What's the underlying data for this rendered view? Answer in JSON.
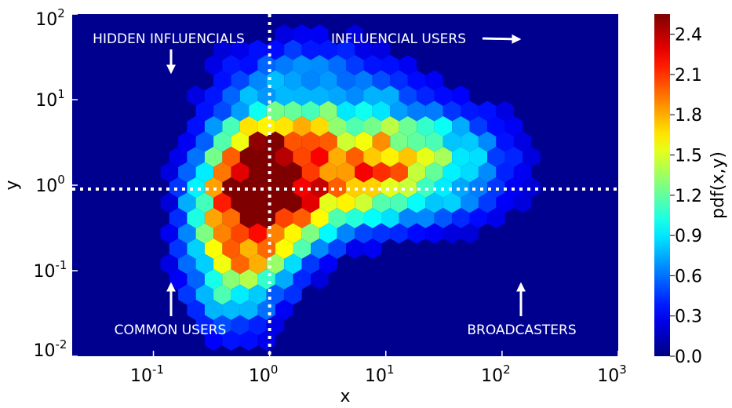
{
  "chart_data": {
    "type": "heatmap",
    "subtype": "hexbin",
    "xlabel": "x",
    "ylabel": "y",
    "x_scale": "log",
    "y_scale": "log",
    "xlim": [
      0.02,
      1000
    ],
    "ylim": [
      0.01,
      100
    ],
    "x_ticks": [
      {
        "value": 0.1,
        "base": "10",
        "exp": "-1"
      },
      {
        "value": 1,
        "base": "10",
        "exp": "0"
      },
      {
        "value": 10,
        "base": "10",
        "exp": "1"
      },
      {
        "value": 100,
        "base": "10",
        "exp": "2"
      },
      {
        "value": 1000,
        "base": "10",
        "exp": "3"
      }
    ],
    "y_ticks": [
      {
        "value": 0.01,
        "base": "10",
        "exp": "-2"
      },
      {
        "value": 0.1,
        "base": "10",
        "exp": "-1"
      },
      {
        "value": 1,
        "base": "10",
        "exp": "0"
      },
      {
        "value": 10,
        "base": "10",
        "exp": "1"
      },
      {
        "value": 100,
        "base": "10",
        "exp": "2"
      }
    ],
    "colorbar": {
      "label": "pdf(x,y)",
      "range": [
        0.0,
        2.55
      ],
      "ticks": [
        "0.0",
        "0.3",
        "0.6",
        "0.9",
        "1.2",
        "1.5",
        "1.8",
        "2.1",
        "2.4"
      ],
      "colormap": "jet",
      "background_color": "#00008f"
    },
    "reference_lines": [
      {
        "axis": "x",
        "value": 1,
        "style": "dotted",
        "color": "#ffffff"
      },
      {
        "axis": "y",
        "value": 0.9,
        "style": "dotted",
        "color": "#ffffff"
      }
    ],
    "density_components": [
      {
        "x": 0.85,
        "y": 0.7,
        "spread_x": 0.35,
        "spread_y": 0.5,
        "weight": 2.4
      },
      {
        "x": 0.9,
        "y": 2.2,
        "spread_x": 0.25,
        "spread_y": 0.35,
        "weight": 0.7
      },
      {
        "x": 5.0,
        "y": 1.6,
        "spread_x": 0.55,
        "spread_y": 0.45,
        "weight": 1.45
      },
      {
        "x": 0.5,
        "y": 0.1,
        "spread_x": 0.3,
        "spread_y": 0.55,
        "weight": 1.05
      },
      {
        "x": 25,
        "y": 1.8,
        "spread_x": 0.55,
        "spread_y": 0.5,
        "weight": 0.75
      },
      {
        "x": 2.0,
        "y": 15,
        "spread_x": 0.6,
        "spread_y": 0.45,
        "weight": 0.6
      }
    ],
    "annotations": [
      {
        "text": "HIDDEN INFLUENCIALS",
        "arrow": "down"
      },
      {
        "text": "INFLUENCIAL USERS",
        "arrow": "right"
      },
      {
        "text": "COMMON USERS",
        "arrow": "up"
      },
      {
        "text": "BROADCASTERS",
        "arrow": "up"
      }
    ]
  }
}
